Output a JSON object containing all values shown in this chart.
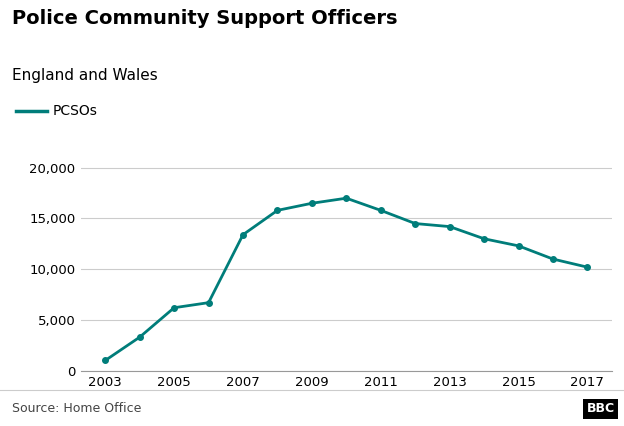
{
  "title": "Police Community Support Officers",
  "subtitle": "England and Wales",
  "legend_label": "PCSOs",
  "source": "Source: Home Office",
  "bbc_logo": "BBC",
  "years": [
    2003,
    2004,
    2005,
    2006,
    2007,
    2008,
    2009,
    2010,
    2011,
    2012,
    2013,
    2014,
    2015,
    2016,
    2017
  ],
  "values": [
    1000,
    3300,
    6200,
    6700,
    13400,
    15800,
    16500,
    17000,
    15800,
    14500,
    14200,
    13000,
    12300,
    11000,
    10200
  ],
  "line_color": "#007d7a",
  "marker": "o",
  "marker_size": 4,
  "ylim": [
    0,
    21000
  ],
  "yticks": [
    0,
    5000,
    10000,
    15000,
    20000
  ],
  "xticks": [
    2003,
    2005,
    2007,
    2009,
    2011,
    2013,
    2015,
    2017
  ],
  "grid_color": "#cccccc",
  "background_color": "#ffffff",
  "title_fontsize": 14,
  "subtitle_fontsize": 11,
  "tick_fontsize": 9.5,
  "legend_fontsize": 10,
  "source_fontsize": 9
}
